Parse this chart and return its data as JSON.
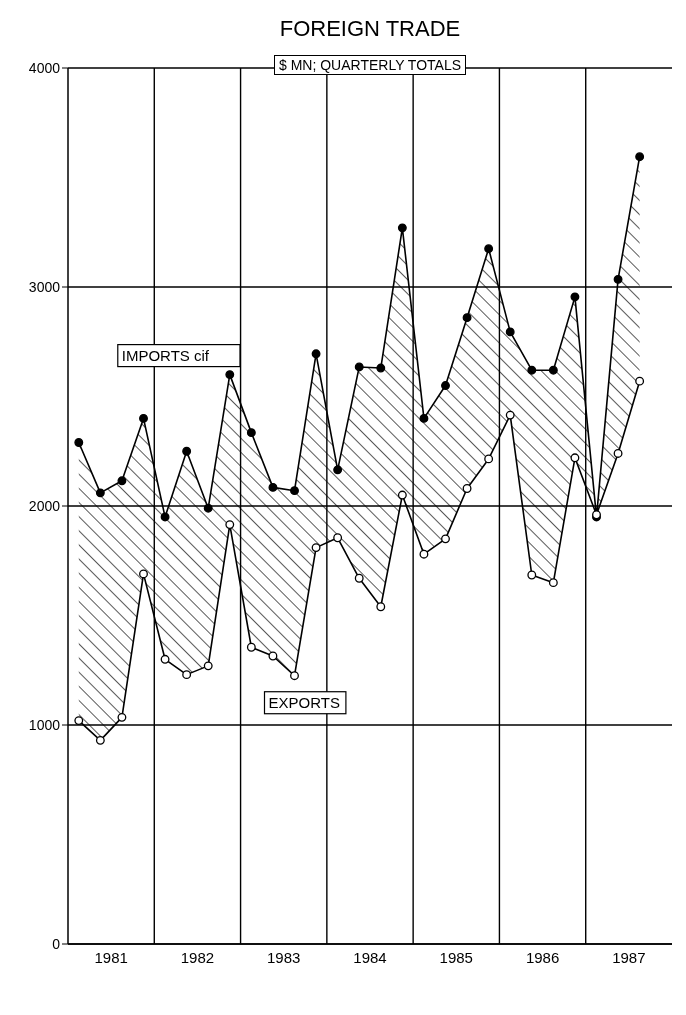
{
  "chart_data": {
    "type": "line",
    "title": "FOREIGN TRADE",
    "subtitle": "$ MN; QUARTERLY TOTALS",
    "x": [
      1981.125,
      1981.375,
      1981.625,
      1981.875,
      1982.125,
      1982.375,
      1982.625,
      1982.875,
      1983.125,
      1983.375,
      1983.625,
      1983.875,
      1984.125,
      1984.375,
      1984.625,
      1984.875,
      1985.125,
      1985.375,
      1985.625,
      1985.875,
      1986.125,
      1986.375,
      1986.625,
      1986.875,
      1987.125,
      1987.375,
      1987.625
    ],
    "series": [
      {
        "name": "IMPORTS cif",
        "color": "#000000",
        "values": [
          2290,
          2060,
          2115,
          2400,
          1950,
          2250,
          1990,
          2600,
          2335,
          2085,
          2070,
          2695,
          2165,
          2635,
          2630,
          3270,
          2400,
          2550,
          2860,
          3175,
          2795,
          2620,
          2620,
          2955,
          1950,
          3035,
          3595
        ],
        "upper": [
          2290,
          2060,
          2115,
          2400,
          1950,
          2250,
          1990,
          2600,
          2335,
          2085,
          2070,
          2695,
          2165,
          2635,
          2630,
          3270,
          2400,
          2550,
          2860,
          3175,
          2795,
          2620,
          2620,
          2955,
          1950,
          3035,
          3595
        ],
        "lower": [
          1020,
          930,
          1035,
          1690,
          1300,
          1230,
          1270,
          1915,
          1355,
          1315,
          1225,
          1810,
          1855,
          1670,
          1540,
          2050,
          1780,
          1850,
          2080,
          2215,
          2415,
          1685,
          1650,
          2220,
          1960,
          2240,
          2570
        ]
      },
      {
        "name": "EXPORTS",
        "color": "#000000",
        "values": [
          1020,
          930,
          1035,
          1690,
          1300,
          1230,
          1270,
          1915,
          1355,
          1315,
          1225,
          1810,
          1855,
          1670,
          1540,
          2050,
          1780,
          1850,
          2080,
          2215,
          2415,
          1685,
          1650,
          2220,
          1960,
          2240,
          2570
        ]
      }
    ],
    "xlim": [
      1981,
      1988
    ],
    "xticks": [
      {
        "value": 1981.5,
        "label": "1981"
      },
      {
        "value": 1982,
        "label": null
      },
      {
        "value": 1982.5,
        "label": "1982"
      },
      {
        "value": 1983,
        "label": null
      },
      {
        "value": 1983.5,
        "label": "1983"
      },
      {
        "value": 1984,
        "label": null
      },
      {
        "value": 1984.5,
        "label": "1984"
      },
      {
        "value": 1985,
        "label": null
      },
      {
        "value": 1985.5,
        "label": "1985"
      },
      {
        "value": 1986,
        "label": null
      },
      {
        "value": 1986.5,
        "label": "1986"
      },
      {
        "value": 1987,
        "label": null
      },
      {
        "value": 1987.5,
        "label": "1987"
      }
    ],
    "ylim": [
      0,
      4000
    ],
    "yticks": [
      0,
      1000,
      2000,
      3000,
      4000
    ],
    "grid": true,
    "legend": false,
    "marker": "circle",
    "line_style": "solid"
  }
}
